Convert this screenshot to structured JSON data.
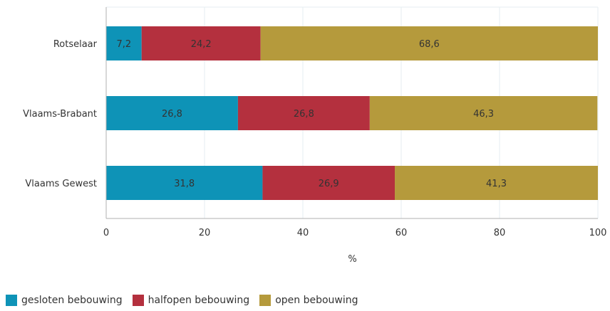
{
  "chart_data": {
    "type": "bar",
    "orientation": "horizontal",
    "stacked": true,
    "categories": [
      "Rotselaar",
      "Vlaams-Brabant",
      "Vlaams Gewest"
    ],
    "series": [
      {
        "name": "gesloten bebouwing",
        "color": "#0e93b7",
        "values": [
          7.2,
          26.8,
          31.8
        ],
        "labels": [
          "7,2",
          "26,8",
          "31,8"
        ]
      },
      {
        "name": "halfopen bebouwing",
        "color": "#b4303e",
        "values": [
          24.2,
          26.8,
          26.9
        ],
        "labels": [
          "24,2",
          "26,8",
          "26,9"
        ]
      },
      {
        "name": "open bebouwing",
        "color": "#b59a3c",
        "values": [
          68.6,
          46.3,
          41.3
        ],
        "labels": [
          "68,6",
          "46,3",
          "41,3"
        ]
      }
    ],
    "xlim": [
      0,
      100
    ],
    "xticks": [
      "0",
      "20",
      "40",
      "60",
      "80",
      "100"
    ],
    "xlabel": "%",
    "grid": true,
    "legend_position": "bottom-left"
  }
}
